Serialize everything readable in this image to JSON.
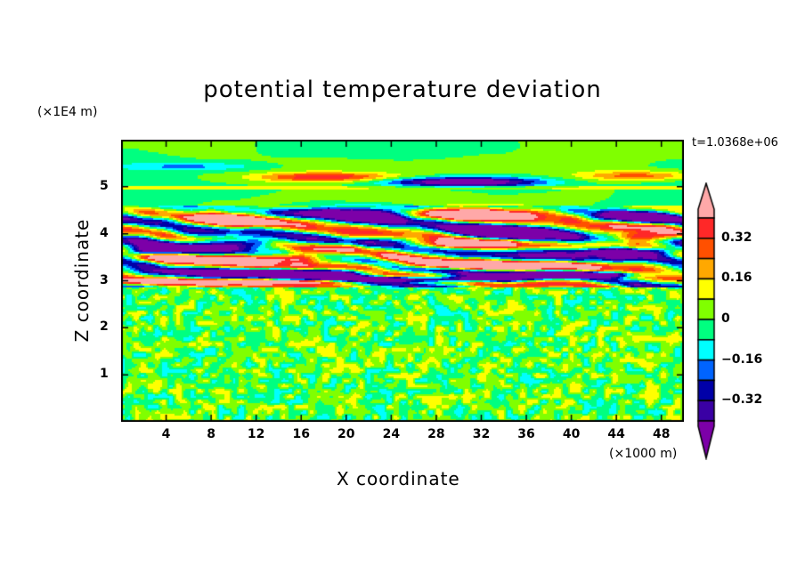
{
  "chart_data": {
    "type": "heatmap",
    "title": "potential temperature deviation",
    "xlabel": "X coordinate",
    "ylabel": "Z coordinate",
    "x_unit": "(×1000 m)",
    "y_unit": "(×1E4 m)",
    "time_label": "t=1.0368e+06",
    "xlim": [
      0,
      50
    ],
    "ylim": [
      0,
      6
    ],
    "x_ticks": [
      "4",
      "8",
      "12",
      "16",
      "20",
      "24",
      "28",
      "32",
      "36",
      "40",
      "44",
      "48"
    ],
    "x_tick_values": [
      4,
      8,
      12,
      16,
      20,
      24,
      28,
      32,
      36,
      40,
      44,
      48
    ],
    "y_ticks": [
      "1",
      "2",
      "3",
      "4",
      "5"
    ],
    "y_tick_values": [
      1,
      2,
      3,
      4,
      5
    ],
    "levels": [
      -0.4,
      -0.32,
      -0.24,
      -0.16,
      -0.08,
      0,
      0.08,
      0.16,
      0.24,
      0.32,
      0.4
    ],
    "colors": [
      "#7c00a8",
      "#3a00a4",
      "#0000a8",
      "#0064ff",
      "#00ffff",
      "#00ff80",
      "#80ff00",
      "#ffff00",
      "#ffa800",
      "#ff5000",
      "#ff2828",
      "#ffa8a8"
    ],
    "colorbar_labels": [
      "0.32",
      "0.16",
      "0",
      "−0.16",
      "−0.32"
    ],
    "colorbar_label_values": [
      0.32,
      0.16,
      0,
      -0.16,
      -0.32
    ],
    "features": [
      {
        "x": 6,
        "z": 5.45,
        "w": 6,
        "h": 0.08,
        "v": -0.12
      },
      {
        "x": 18,
        "z": 5.22,
        "w": 6,
        "h": 0.1,
        "v": 0.28
      },
      {
        "x": 30,
        "z": 5.12,
        "w": 7,
        "h": 0.1,
        "v": -0.42
      },
      {
        "x": 46,
        "z": 5.25,
        "w": 5,
        "h": 0.1,
        "v": 0.2
      },
      {
        "x": 22,
        "z": 4.45,
        "w": 5,
        "h": 0.15,
        "v": -0.5
      },
      {
        "x": 32,
        "z": 4.45,
        "w": 6,
        "h": 0.12,
        "v": 0.5
      },
      {
        "x": 10,
        "z": 4.3,
        "w": 3,
        "h": 0.15,
        "v": 0.45
      },
      {
        "x": 34,
        "z": 4.05,
        "w": 5,
        "h": 0.15,
        "v": -0.5
      },
      {
        "x": 46,
        "z": 4.4,
        "w": 3,
        "h": 0.12,
        "v": -0.5
      },
      {
        "x": 9,
        "z": 3.8,
        "w": 5,
        "h": 0.12,
        "v": -0.5
      },
      {
        "x": 12,
        "z": 3.5,
        "w": 9,
        "h": 0.1,
        "v": 0.5
      },
      {
        "x": 30,
        "z": 3.8,
        "w": 4,
        "h": 0.1,
        "v": 0.5
      },
      {
        "x": 44,
        "z": 3.65,
        "w": 6,
        "h": 0.1,
        "v": -0.5
      },
      {
        "x": 46,
        "z": 3.95,
        "w": 3,
        "h": 0.1,
        "v": 0.45
      },
      {
        "x": 14,
        "z": 3.2,
        "w": 8,
        "h": 0.08,
        "v": -0.5
      },
      {
        "x": 32,
        "z": 3.35,
        "w": 8,
        "h": 0.08,
        "v": 0.5
      },
      {
        "x": 26,
        "z": 3.05,
        "w": 10,
        "h": 0.06,
        "v": -0.5
      },
      {
        "x": 12,
        "z": 3.0,
        "w": 10,
        "h": 0.05,
        "v": 0.5
      },
      {
        "x": 40,
        "z": 3.15,
        "w": 7,
        "h": 0.06,
        "v": -0.5
      },
      {
        "x": 2,
        "z": 3.65,
        "w": 2,
        "h": 0.1,
        "v": -0.45
      }
    ]
  }
}
